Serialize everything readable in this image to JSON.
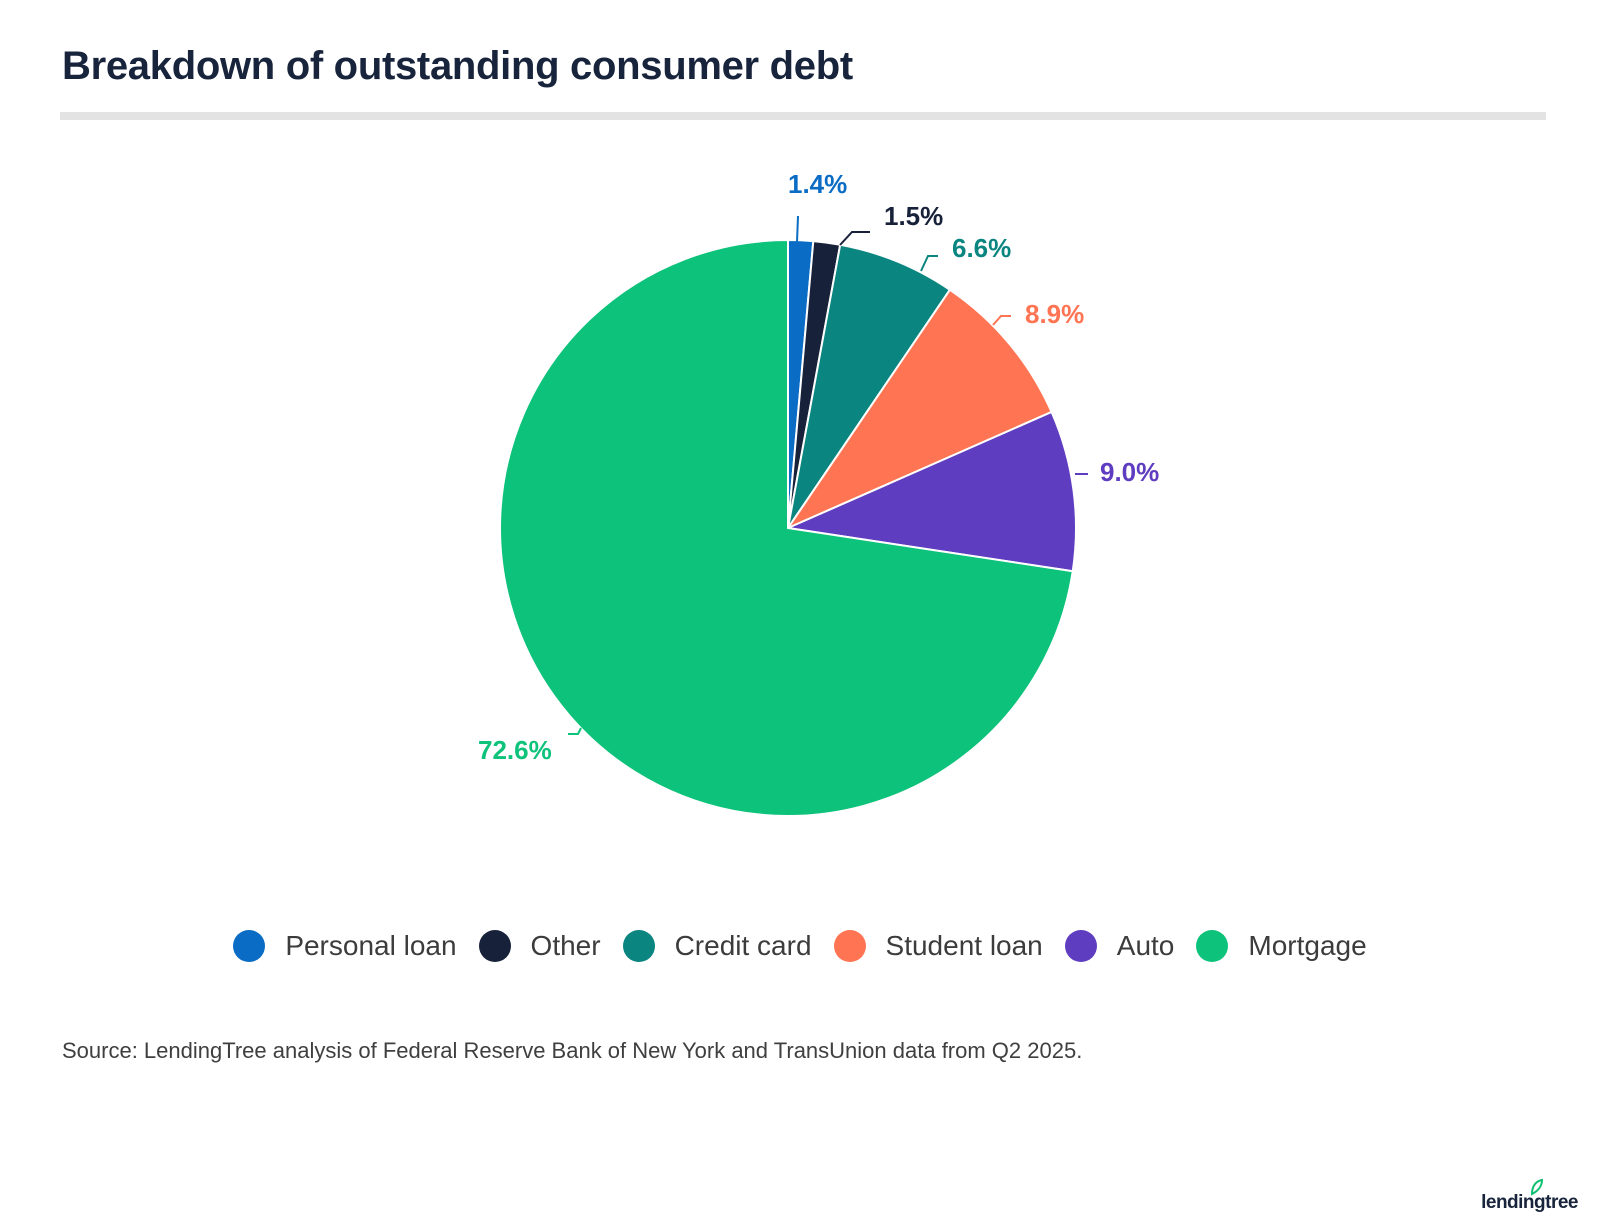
{
  "title": "Breakdown of outstanding consumer debt",
  "source": "Source: LendingTree analysis of Federal Reserve Bank of New York and TransUnion data from Q2 2025.",
  "logo": "lendingtree",
  "colors": {
    "title": "#17243b",
    "rule": "#e3e3e3",
    "logo_leaf": "#0ebf6f"
  },
  "chart_data": {
    "type": "pie",
    "title": "Breakdown of outstanding consumer debt",
    "legend_position": "bottom",
    "start_angle": "12 o'clock",
    "direction": "clockwise",
    "slices": [
      {
        "label": "Personal loan",
        "value": 1.4,
        "value_label": "1.4%",
        "color": "#0a6cc4"
      },
      {
        "label": "Other",
        "value": 1.5,
        "value_label": "1.5%",
        "color": "#17213a"
      },
      {
        "label": "Credit card",
        "value": 6.6,
        "value_label": "6.6%",
        "color": "#0a8580"
      },
      {
        "label": "Student loan",
        "value": 8.9,
        "value_label": "8.9%",
        "color": "#ff7554"
      },
      {
        "label": "Auto",
        "value": 9.0,
        "value_label": "9.0%",
        "color": "#5f3dc0"
      },
      {
        "label": "Mortgage",
        "value": 72.6,
        "value_label": "72.6%",
        "color": "#0dc27a"
      }
    ]
  }
}
